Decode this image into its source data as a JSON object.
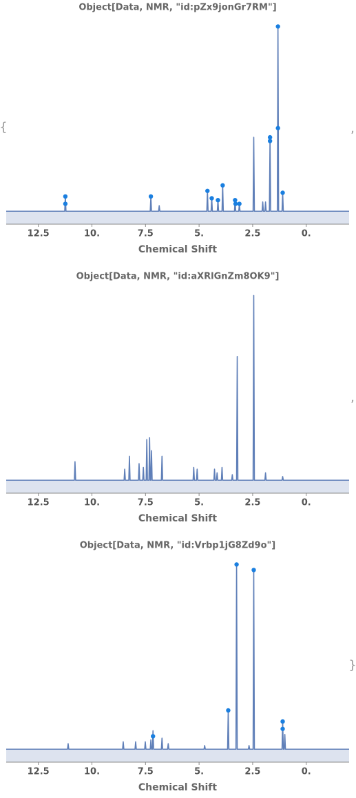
{
  "delimiters": [
    "{",
    ",",
    ",",
    "}"
  ],
  "chart_data": [
    {
      "type": "line",
      "title": "Object[Data, NMR, \"id:pZx9jonGr7RM\"]",
      "x_label": "Chemical Shift",
      "xlim": [
        14,
        -2
      ],
      "ylim": [
        -0.07,
        1.05
      ],
      "xticks": [
        12.5,
        {
          "value": 10,
          "label": "10."
        },
        7.5,
        {
          "value": 5,
          "label": "5."
        },
        2.5,
        {
          "value": 0,
          "label": "0."
        }
      ],
      "color": "#5f7fb8",
      "fill_color": "#dde3ef",
      "marker_color": "#1a7fe0",
      "x": [
        14,
        11.27,
        11.24,
        11.21,
        7.28,
        7.25,
        7.22,
        6.89,
        6.86,
        6.83,
        4.64,
        4.61,
        4.58,
        4.44,
        4.41,
        4.38,
        4.15,
        4.12,
        4.09,
        3.93,
        3.9,
        3.87,
        3.35,
        3.32,
        3.29,
        3.15,
        3.12,
        3.09,
        2.48,
        2.45,
        2.42,
        2.06,
        2.03,
        2,
        1.93,
        1.9,
        1.87,
        1.72,
        1.69,
        1.66,
        1.35,
        1.32,
        1.29,
        1.13,
        1.1,
        1.07,
        -2
      ],
      "values": [
        0,
        0,
        0.08,
        0,
        0,
        0.08,
        0,
        0,
        0.03,
        0,
        0,
        0.11,
        0,
        0,
        0.07,
        0,
        0,
        0.06,
        0,
        0,
        0.14,
        0,
        0,
        0.06,
        0,
        0,
        0.04,
        0,
        0,
        0.4,
        0,
        0,
        0.05,
        0,
        0,
        0.05,
        0,
        0,
        0.4,
        0,
        0,
        1,
        0,
        0,
        0.1,
        0,
        0
      ],
      "markers": {
        "x": [
          11.24,
          11.24,
          7.25,
          4.61,
          4.41,
          4.12,
          3.9,
          3.32,
          3.3,
          3.12,
          1.69,
          1.69,
          1.32,
          1.32,
          1.1
        ],
        "values": [
          0.08,
          0.04,
          0.08,
          0.11,
          0.07,
          0.06,
          0.14,
          0.06,
          0.04,
          0.04,
          0.4,
          0.38,
          1,
          0.45,
          0.1
        ]
      }
    },
    {
      "type": "line",
      "title": "Object[Data, NMR, \"id:aXRlGnZm8OK9\"]",
      "x_label": "Chemical Shift",
      "xlim": [
        14,
        -2
      ],
      "ylim": [
        -0.07,
        1.05
      ],
      "xticks": [
        12.5,
        {
          "value": 10,
          "label": "10."
        },
        7.5,
        {
          "value": 5,
          "label": "5."
        },
        2.5,
        {
          "value": 0,
          "label": "0."
        }
      ],
      "color": "#5f7fb8",
      "fill_color": "#dde3ef",
      "x": [
        14,
        10.82,
        10.79,
        10.76,
        8.5,
        8.47,
        8.44,
        8.28,
        8.25,
        8.22,
        7.83,
        7.8,
        7.77,
        7.63,
        7.6,
        7.57,
        7.47,
        7.44,
        7.41,
        7.34,
        7.31,
        7.28,
        7.25,
        7.22,
        7.19,
        6.76,
        6.73,
        6.7,
        5.28,
        5.25,
        5.22,
        5.12,
        5.09,
        5.06,
        4.31,
        4.28,
        4.25,
        4.19,
        4.16,
        4.13,
        3.96,
        3.93,
        3.9,
        3.48,
        3.45,
        3.42,
        3.25,
        3.22,
        3.19,
        2.48,
        2.45,
        2.42,
        1.93,
        1.9,
        1.87,
        1.13,
        1.1,
        1.07,
        -2
      ],
      "values": [
        0,
        0,
        0.1,
        0,
        0,
        0.06,
        0,
        0,
        0.13,
        0,
        0,
        0.09,
        0,
        0,
        0.07,
        0,
        0,
        0.22,
        0,
        0,
        0.23,
        0,
        0,
        0.16,
        0,
        0,
        0.13,
        0,
        0,
        0.07,
        0,
        0,
        0.06,
        0,
        0,
        0.06,
        0,
        0,
        0.04,
        0,
        0,
        0.07,
        0,
        0,
        0.03,
        0,
        0,
        0.67,
        0,
        0,
        1,
        0,
        0,
        0.04,
        0,
        0,
        0.02,
        0,
        0
      ]
    },
    {
      "type": "line",
      "title": "Object[Data, NMR, \"id:Vrbp1jG8Zd9o\"]",
      "x_label": "Chemical Shift",
      "xlim": [
        14,
        -2
      ],
      "ylim": [
        -0.07,
        1.05
      ],
      "xticks": [
        12.5,
        {
          "value": 10,
          "label": "10."
        },
        7.5,
        {
          "value": 5,
          "label": "5."
        },
        2.5,
        {
          "value": 0,
          "label": "0."
        }
      ],
      "color": "#5f7fb8",
      "fill_color": "#dde3ef",
      "marker_color": "#1a7fe0",
      "x": [
        14,
        11.14,
        11.11,
        11.08,
        8.57,
        8.54,
        8.51,
        7.99,
        7.96,
        7.93,
        7.54,
        7.51,
        7.48,
        7.28,
        7.25,
        7.22,
        7.18,
        7.15,
        7.12,
        6.76,
        6.73,
        6.7,
        6.47,
        6.44,
        6.41,
        4.77,
        4.74,
        4.71,
        3.67,
        3.64,
        3.61,
        3.28,
        3.25,
        3.22,
        2.7,
        2.67,
        2.64,
        2.48,
        2.45,
        2.42,
        1.13,
        1.1,
        1.07,
        1.03,
        1,
        0.97,
        -2
      ],
      "values": [
        0,
        0,
        0.03,
        0,
        0,
        0.04,
        0,
        0,
        0.04,
        0,
        0,
        0.04,
        0,
        0,
        0.05,
        0,
        0,
        0.1,
        0,
        0,
        0.06,
        0,
        0,
        0.03,
        0,
        0,
        0.02,
        0,
        0,
        0.21,
        0,
        0,
        1,
        0,
        0,
        0.02,
        0,
        0,
        0.97,
        0,
        0,
        0.15,
        0,
        0,
        0.08,
        0,
        0
      ],
      "markers": {
        "x": [
          7.15,
          3.64,
          3.25,
          2.45,
          1.1,
          1.1
        ],
        "values": [
          0.07,
          0.21,
          1,
          0.97,
          0.15,
          0.11
        ]
      }
    }
  ]
}
